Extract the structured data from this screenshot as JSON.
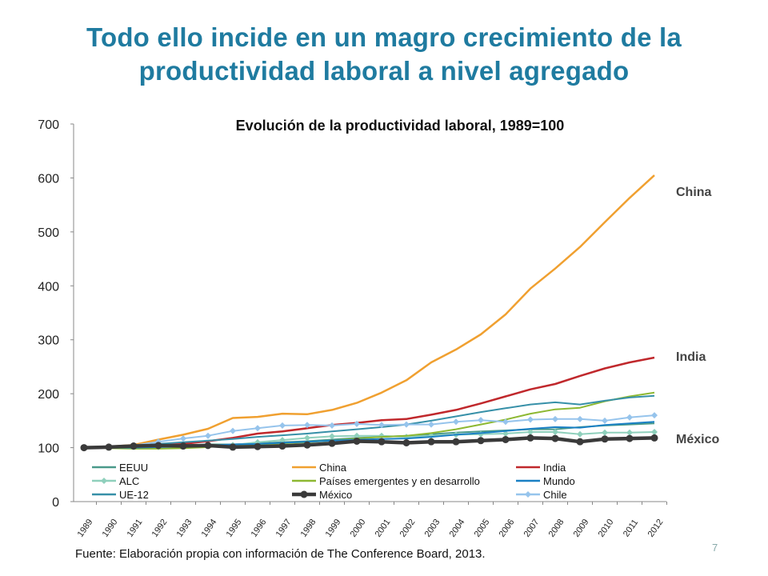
{
  "slide": {
    "title": "Todo ello incide en un magro crecimiento de la productividad laboral a nivel agregado",
    "source": "Fuente: Elaboración propia con información de The Conference Board, 2013.",
    "page_number": "7"
  },
  "side_labels": {
    "china": "China",
    "india": "India",
    "mexico": "México"
  },
  "chart_data": {
    "type": "line",
    "title": "Evolución de la productividad laboral, 1989=100",
    "xlabel": "",
    "ylabel": "",
    "ylim": [
      0,
      700
    ],
    "yticks": [
      0,
      100,
      200,
      300,
      400,
      500,
      600,
      700
    ],
    "grid": false,
    "legend_position": "bottom-inside",
    "categories": [
      "1989",
      "1990",
      "1991",
      "1992",
      "1993",
      "1994",
      "1995",
      "1996",
      "1997",
      "1998",
      "1999",
      "2000",
      "2001",
      "2002",
      "2003",
      "2004",
      "2005",
      "2006",
      "2007",
      "2008",
      "2009",
      "2010",
      "2011",
      "2012"
    ],
    "series": [
      {
        "name": "EEUU",
        "color": "#4a9a8a",
        "marker": "none",
        "width": 2,
        "values": [
          100,
          101,
          102,
          103,
          104,
          106,
          106,
          108,
          110,
          112,
          115,
          118,
          120,
          122,
          125,
          128,
          130,
          132,
          134,
          134,
          138,
          141,
          143,
          145
        ]
      },
      {
        "name": "China",
        "color": "#f0a030",
        "marker": "none",
        "width": 2.5,
        "values": [
          100,
          102,
          105,
          115,
          124,
          135,
          155,
          157,
          163,
          162,
          170,
          183,
          202,
          225,
          258,
          282,
          310,
          347,
          395,
          432,
          472,
          518,
          563,
          605
        ]
      },
      {
        "name": "India",
        "color": "#c0282c",
        "marker": "none",
        "width": 2.5,
        "values": [
          100,
          102,
          104,
          106,
          107,
          112,
          118,
          126,
          130,
          136,
          142,
          146,
          151,
          153,
          161,
          170,
          182,
          195,
          208,
          218,
          233,
          247,
          258,
          267
        ]
      },
      {
        "name": "ALC",
        "color": "#8fd0bc",
        "marker": "diamond",
        "width": 2,
        "values": [
          100,
          100,
          101,
          101,
          102,
          103,
          105,
          110,
          114,
          118,
          121,
          122,
          122,
          120,
          122,
          124,
          125,
          126,
          129,
          129,
          125,
          128,
          128,
          129
        ]
      },
      {
        "name": "Países emergentes y en desarrollo",
        "color": "#8db832",
        "marker": "none",
        "width": 2,
        "values": [
          100,
          99,
          98,
          98,
          99,
          101,
          104,
          106,
          108,
          110,
          113,
          117,
          120,
          122,
          127,
          134,
          143,
          152,
          163,
          171,
          174,
          186,
          195,
          202
        ]
      },
      {
        "name": "Mundo",
        "color": "#1a80c4",
        "marker": "none",
        "width": 2,
        "values": [
          100,
          100,
          100,
          101,
          102,
          104,
          106,
          107,
          109,
          111,
          113,
          115,
          116,
          117,
          120,
          124,
          127,
          131,
          135,
          138,
          137,
          142,
          145,
          148
        ]
      },
      {
        "name": "UE-12",
        "color": "#3790a8",
        "marker": "none",
        "width": 2,
        "values": [
          100,
          102,
          104,
          107,
          110,
          113,
          116,
          120,
          123,
          126,
          130,
          134,
          138,
          143,
          150,
          158,
          166,
          173,
          180,
          184,
          180,
          187,
          193,
          196
        ]
      },
      {
        "name": "México",
        "color": "#3a3a3a",
        "marker": "circle",
        "width": 4.5,
        "values": [
          100,
          101,
          103,
          104,
          103,
          104,
          101,
          102,
          103,
          105,
          108,
          112,
          111,
          109,
          111,
          111,
          113,
          115,
          118,
          117,
          111,
          116,
          117,
          118
        ]
      },
      {
        "name": "Chile",
        "color": "#96c4ec",
        "marker": "diamond",
        "width": 2,
        "values": [
          100,
          101,
          104,
          111,
          117,
          122,
          131,
          136,
          141,
          142,
          141,
          144,
          142,
          143,
          143,
          148,
          151,
          148,
          152,
          153,
          153,
          150,
          156,
          160
        ]
      }
    ]
  }
}
